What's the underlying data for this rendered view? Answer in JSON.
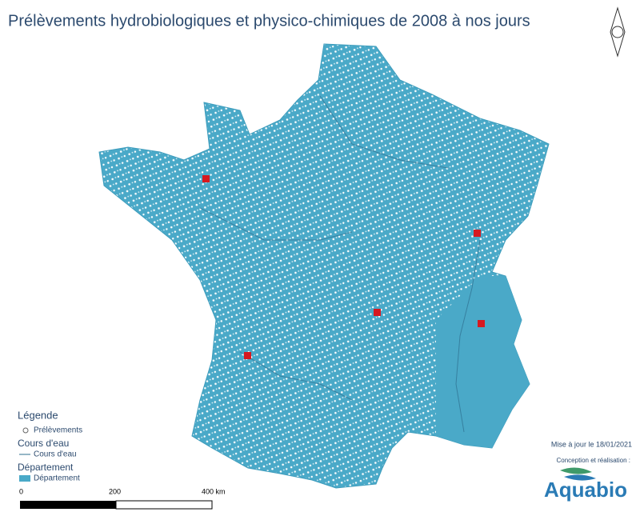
{
  "title": "Prélèvements hydrobiologiques et physico-chimiques de 2008 à nos jours",
  "legend": {
    "title": "Légende",
    "samples": "Prélèvements",
    "groups": [
      {
        "title": "Cours d'eau",
        "item": "Cours d'eau"
      },
      {
        "title": "Département",
        "item": "Département"
      }
    ]
  },
  "scale": {
    "labels": [
      "0",
      "200",
      "400 km"
    ]
  },
  "footer": {
    "update": "Mise à jour le 18/01/2021",
    "credit": "Conception et réalisation :",
    "logo": "Aquabio"
  }
}
